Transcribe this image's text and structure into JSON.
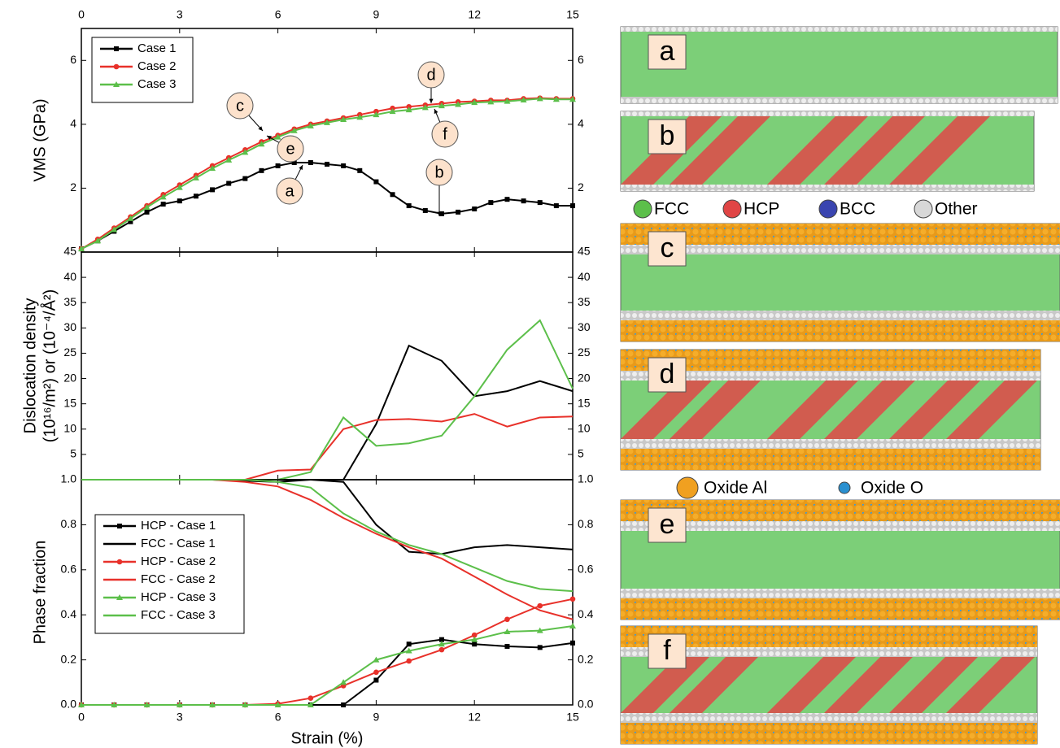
{
  "chart_data": [
    {
      "type": "line",
      "y_label": "VMS (GPa)",
      "legend": "upper-left",
      "xaxis_labels_side": "top",
      "mirror_y": true,
      "x": [
        0,
        0.5,
        1,
        1.5,
        2,
        2.5,
        3,
        3.5,
        4,
        4.5,
        5,
        5.5,
        6,
        6.5,
        7,
        7.5,
        8,
        8.5,
        9,
        9.5,
        10,
        10.5,
        11,
        11.5,
        12,
        12.5,
        13,
        13.5,
        14,
        14.5,
        15
      ],
      "xlim": [
        0,
        15
      ],
      "xticks": [
        0,
        3,
        6,
        9,
        12,
        15
      ],
      "ylim": [
        0,
        7
      ],
      "yticks": [
        2,
        4,
        6
      ],
      "series": [
        {
          "name": "Case 1",
          "color": "#000000",
          "marker": "square",
          "values": [
            0.1,
            0.35,
            0.65,
            0.95,
            1.25,
            1.5,
            1.6,
            1.75,
            1.95,
            2.15,
            2.3,
            2.55,
            2.7,
            2.8,
            2.8,
            2.75,
            2.7,
            2.55,
            2.2,
            1.8,
            1.45,
            1.3,
            1.2,
            1.25,
            1.35,
            1.55,
            1.65,
            1.6,
            1.55,
            1.45,
            1.45
          ]
        },
        {
          "name": "Case 2",
          "color": "#e8312a",
          "marker": "circle",
          "values": [
            0.1,
            0.4,
            0.75,
            1.1,
            1.45,
            1.8,
            2.1,
            2.4,
            2.7,
            2.95,
            3.2,
            3.45,
            3.65,
            3.85,
            4.0,
            4.1,
            4.2,
            4.3,
            4.4,
            4.5,
            4.55,
            4.6,
            4.65,
            4.7,
            4.72,
            4.75,
            4.75,
            4.8,
            4.82,
            4.8,
            4.8
          ]
        },
        {
          "name": "Case 3",
          "color": "#5cbf4a",
          "marker": "triangle",
          "values": [
            0.1,
            0.35,
            0.7,
            1.05,
            1.4,
            1.72,
            2.02,
            2.32,
            2.62,
            2.88,
            3.12,
            3.38,
            3.6,
            3.8,
            3.95,
            4.05,
            4.15,
            4.22,
            4.3,
            4.4,
            4.45,
            4.52,
            4.58,
            4.62,
            4.68,
            4.7,
            4.72,
            4.76,
            4.8,
            4.78,
            4.78
          ]
        }
      ],
      "annotations": [
        "a",
        "b",
        "c",
        "d",
        "e",
        "f"
      ]
    },
    {
      "type": "line",
      "y_label": [
        "Dislocation density",
        "(10¹⁶/m²) or (10⁻⁴/Å²)"
      ],
      "mirror_y": true,
      "x": [
        0,
        1,
        2,
        3,
        4,
        5,
        6,
        7,
        8,
        9,
        10,
        11,
        12,
        13,
        14,
        15
      ],
      "xlim": [
        0,
        15
      ],
      "xticks": [
        0,
        3,
        6,
        9,
        12,
        15
      ],
      "ylim": [
        0,
        45
      ],
      "yticks": [
        5,
        10,
        15,
        20,
        25,
        30,
        35,
        40,
        45
      ],
      "series": [
        {
          "name": "Case 1",
          "color": "#000000",
          "values": [
            0,
            0,
            0,
            0,
            0,
            0,
            0,
            0,
            0,
            11,
            26.5,
            23.5,
            16.5,
            17.5,
            19.5,
            17.5
          ]
        },
        {
          "name": "Case 2",
          "color": "#e8312a",
          "values": [
            0,
            0,
            0,
            0,
            0,
            0,
            1.8,
            2,
            10,
            11.8,
            12,
            11.5,
            13,
            10.5,
            12.3,
            12.5
          ]
        },
        {
          "name": "Case 3",
          "color": "#5cbf4a",
          "values": [
            0,
            0,
            0,
            0,
            0,
            0,
            0,
            1.5,
            12.3,
            6.7,
            7.2,
            8.7,
            16.5,
            25.7,
            31.5,
            18
          ]
        }
      ]
    },
    {
      "type": "line",
      "y_label": "Phase fraction",
      "x_label": "Strain (%)",
      "legend": "lower-left",
      "xaxis_labels_side": "bottom",
      "mirror_y": true,
      "x": [
        0,
        1,
        2,
        3,
        4,
        5,
        6,
        7,
        8,
        9,
        10,
        11,
        12,
        13,
        14,
        15
      ],
      "xlim": [
        0,
        15
      ],
      "xticks": [
        0,
        3,
        6,
        9,
        12,
        15
      ],
      "ylim": [
        0,
        1
      ],
      "yticks": [
        {
          "value": 0,
          "label": "0.0"
        },
        0.2,
        0.4,
        0.6,
        0.8,
        {
          "value": 1,
          "label": "1.0"
        }
      ],
      "series": [
        {
          "name": "HCP - Case 1",
          "color": "#000000",
          "marker": "square",
          "values": [
            0,
            0,
            0,
            0,
            0,
            0,
            0,
            0,
            0,
            0.11,
            0.27,
            0.29,
            0.27,
            0.26,
            0.255,
            0.275
          ]
        },
        {
          "name": "FCC - Case 1",
          "color": "#000000",
          "values": [
            1,
            1,
            1,
            1,
            1,
            0.995,
            0.99,
            1,
            0.99,
            0.8,
            0.68,
            0.67,
            0.7,
            0.71,
            0.7,
            0.69
          ]
        },
        {
          "name": "HCP - Case 2",
          "color": "#e8312a",
          "marker": "circle",
          "values": [
            0,
            0,
            0,
            0,
            0,
            0,
            0.005,
            0.03,
            0.085,
            0.145,
            0.195,
            0.245,
            0.31,
            0.38,
            0.44,
            0.47
          ]
        },
        {
          "name": "FCC - Case 2",
          "color": "#e8312a",
          "values": [
            1,
            1,
            1,
            1,
            1,
            0.99,
            0.97,
            0.91,
            0.83,
            0.76,
            0.7,
            0.65,
            0.57,
            0.49,
            0.42,
            0.38
          ]
        },
        {
          "name": "HCP - Case 3",
          "color": "#5cbf4a",
          "marker": "triangle",
          "values": [
            0,
            0,
            0,
            0,
            0,
            0,
            0,
            0,
            0.1,
            0.2,
            0.24,
            0.27,
            0.29,
            0.325,
            0.33,
            0.35
          ]
        },
        {
          "name": "FCC - Case 3",
          "color": "#5cbf4a",
          "values": [
            1,
            1,
            1,
            1,
            1,
            1,
            0.99,
            0.965,
            0.85,
            0.77,
            0.71,
            0.67,
            0.61,
            0.55,
            0.515,
            0.505
          ]
        }
      ]
    }
  ],
  "structure_panels": {
    "labels": [
      "a",
      "b",
      "c",
      "d",
      "e",
      "f"
    ],
    "phase_legend": [
      {
        "name": "FCC",
        "color": "#5cbf4a"
      },
      {
        "name": "HCP",
        "color": "#e04545"
      },
      {
        "name": "BCC",
        "color": "#3a45b0"
      },
      {
        "name": "Other",
        "color": "#d8d8d8"
      }
    ],
    "oxide_legend": [
      {
        "name": "Oxide Al",
        "color": "#f0a020"
      },
      {
        "name": "Oxide O",
        "color": "#2a90d0"
      }
    ]
  }
}
